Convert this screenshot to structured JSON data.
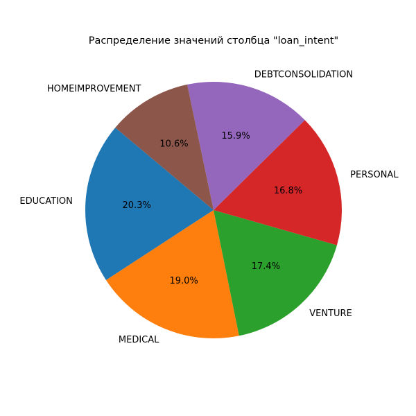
{
  "chart_data": {
    "type": "pie",
    "title": "Распределение значений столбца \"loan_intent\"",
    "start_angle_deg": 140,
    "direction": "counterclockwise",
    "slices": [
      {
        "label": "EDUCATION",
        "value": 20.3,
        "pct_label": "20.3%",
        "color": "#1f77b4"
      },
      {
        "label": "MEDICAL",
        "value": 19.0,
        "pct_label": "19.0%",
        "color": "#ff7f0e"
      },
      {
        "label": "VENTURE",
        "value": 17.4,
        "pct_label": "17.4%",
        "color": "#2ca02c"
      },
      {
        "label": "PERSONAL",
        "value": 16.8,
        "pct_label": "16.8%",
        "color": "#d62728"
      },
      {
        "label": "DEBTCONSOLIDATION",
        "value": 15.9,
        "pct_label": "15.9%",
        "color": "#9467bd"
      },
      {
        "label": "HOMEIMPROVEMENT",
        "value": 10.6,
        "pct_label": "10.6%",
        "color": "#8c564b"
      }
    ]
  }
}
